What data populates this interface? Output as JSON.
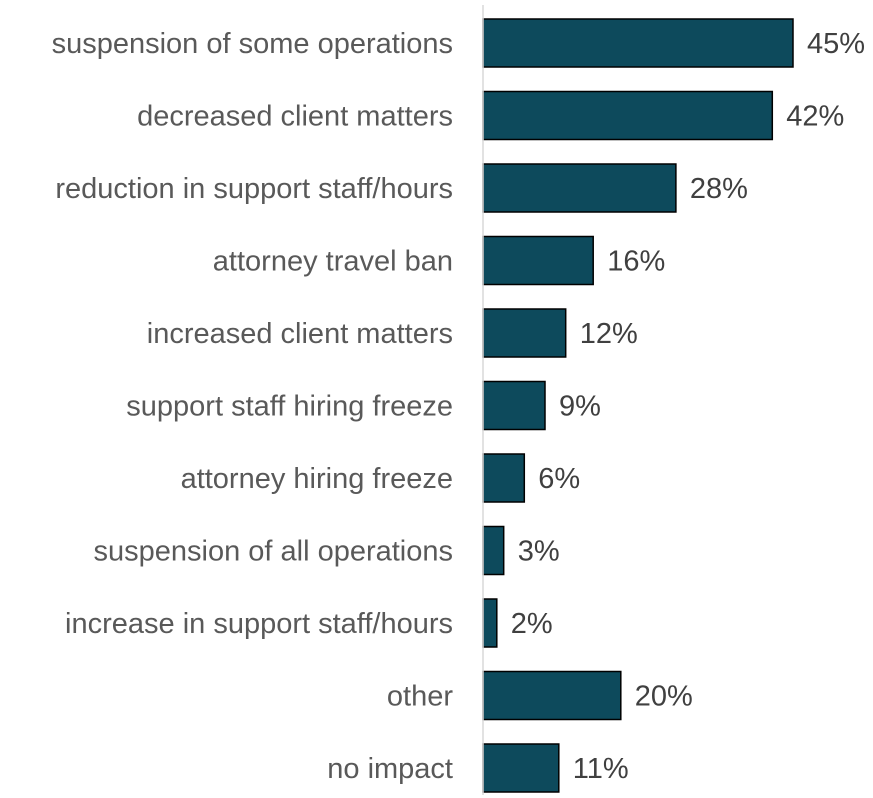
{
  "chart_data": {
    "type": "bar",
    "orientation": "horizontal",
    "categories": [
      "suspension of some operations",
      "decreased client matters",
      "reduction in support staff/hours",
      "attorney travel ban",
      "increased client matters",
      "support staff hiring freeze",
      "attorney hiring freeze",
      "suspension of all operations",
      "increase in support staff/hours",
      "other",
      "no impact"
    ],
    "values": [
      45,
      42,
      28,
      16,
      12,
      9,
      6,
      3,
      2,
      20,
      11
    ],
    "data_labels": [
      "45%",
      "42%",
      "28%",
      "16%",
      "12%",
      "9%",
      "6%",
      "3%",
      "2%",
      "20%",
      "11%"
    ],
    "value_unit": "%",
    "xlim": [
      0,
      45
    ],
    "grid": false,
    "legend": "none",
    "bar_color": "#0d4a5c"
  }
}
